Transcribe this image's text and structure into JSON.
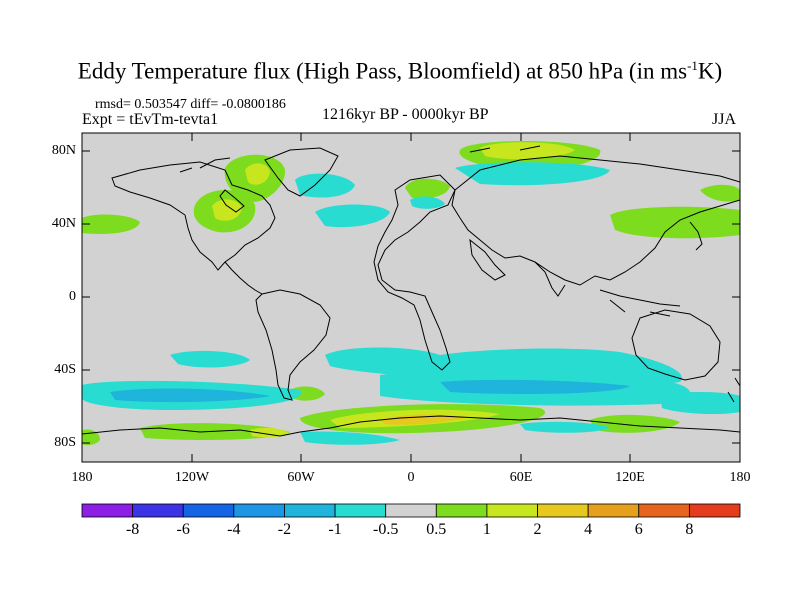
{
  "title": {
    "main": "Eddy Temperature flux (High Pass, Bloomfield) at 850 hPa (in ms",
    "sup": "-1",
    "end": "K)"
  },
  "stats": "rmsd= 0.503547 diff= -0.0800186",
  "expt": "Expt = tEvTm-tevta1",
  "period": "1216kyr BP - 0000kyr BP",
  "season": "JJA",
  "y_axis_labels": [
    "80N",
    "40N",
    "0",
    "40S",
    "80S"
  ],
  "x_axis_labels": [
    "180",
    "120W",
    "60W",
    "0",
    "60E",
    "120E",
    "180"
  ],
  "colorbar": {
    "labels": [
      "-8",
      "-6",
      "-4",
      "-2",
      "-1",
      "-0.5",
      "0.5",
      "1",
      "2",
      "4",
      "6",
      "8"
    ],
    "colors": [
      "#8c1ee6",
      "#3c32e6",
      "#1464e6",
      "#1e96e6",
      "#1eb4dc",
      "#28dcd2",
      "#d2d2d2",
      "#7ddc1e",
      "#c8e61e",
      "#e6c81e",
      "#e6a01e",
      "#e6641e",
      "#e63c1e"
    ]
  },
  "colors": {
    "ocean_land_background": "#d2d2d2",
    "coastline": "#000000"
  }
}
